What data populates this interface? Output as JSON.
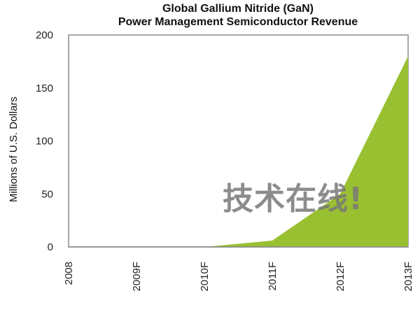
{
  "chart_data": {
    "type": "area",
    "title": "Global Gallium Nitride (GaN)",
    "subtitle": "Power Management Semiconductor Revenue",
    "xlabel": "",
    "ylabel": "Millions of U.S. Dollars",
    "categories": [
      "2008",
      "2009F",
      "2010F",
      "2011F",
      "2012F",
      "2013F"
    ],
    "values": [
      0,
      0,
      0,
      6,
      50,
      180
    ],
    "ylim": [
      0,
      200
    ],
    "yticks": [
      0,
      50,
      100,
      150,
      200
    ],
    "grid": false,
    "legend": "none",
    "fill_color": "#99c031"
  },
  "watermark": "技术在线!"
}
